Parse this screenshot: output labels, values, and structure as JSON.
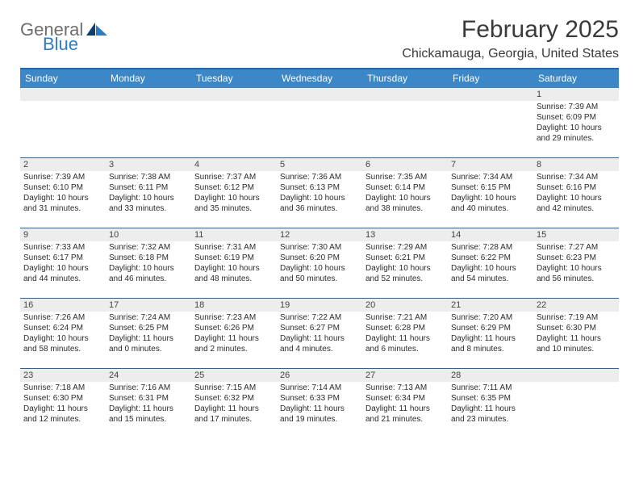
{
  "brand": {
    "name1": "General",
    "name2": "Blue"
  },
  "title": "February 2025",
  "location": "Chickamauga, Georgia, United States",
  "colors": {
    "header_band": "#3b87c8",
    "rule": "#2766a3",
    "daynum_bg": "#ededed",
    "brand_gray": "#6e6e6e",
    "brand_blue": "#2f7cc0",
    "sail_dark": "#0f3e6d",
    "sail_blue": "#2f7cc0"
  },
  "weekdays": [
    "Sunday",
    "Monday",
    "Tuesday",
    "Wednesday",
    "Thursday",
    "Friday",
    "Saturday"
  ],
  "calendar": {
    "first_weekday_index": 6,
    "days": [
      {
        "n": 1,
        "sunrise": "7:39 AM",
        "sunset": "6:09 PM",
        "dl_h": 10,
        "dl_m": 29
      },
      {
        "n": 2,
        "sunrise": "7:39 AM",
        "sunset": "6:10 PM",
        "dl_h": 10,
        "dl_m": 31
      },
      {
        "n": 3,
        "sunrise": "7:38 AM",
        "sunset": "6:11 PM",
        "dl_h": 10,
        "dl_m": 33
      },
      {
        "n": 4,
        "sunrise": "7:37 AM",
        "sunset": "6:12 PM",
        "dl_h": 10,
        "dl_m": 35
      },
      {
        "n": 5,
        "sunrise": "7:36 AM",
        "sunset": "6:13 PM",
        "dl_h": 10,
        "dl_m": 36
      },
      {
        "n": 6,
        "sunrise": "7:35 AM",
        "sunset": "6:14 PM",
        "dl_h": 10,
        "dl_m": 38
      },
      {
        "n": 7,
        "sunrise": "7:34 AM",
        "sunset": "6:15 PM",
        "dl_h": 10,
        "dl_m": 40
      },
      {
        "n": 8,
        "sunrise": "7:34 AM",
        "sunset": "6:16 PM",
        "dl_h": 10,
        "dl_m": 42
      },
      {
        "n": 9,
        "sunrise": "7:33 AM",
        "sunset": "6:17 PM",
        "dl_h": 10,
        "dl_m": 44
      },
      {
        "n": 10,
        "sunrise": "7:32 AM",
        "sunset": "6:18 PM",
        "dl_h": 10,
        "dl_m": 46
      },
      {
        "n": 11,
        "sunrise": "7:31 AM",
        "sunset": "6:19 PM",
        "dl_h": 10,
        "dl_m": 48
      },
      {
        "n": 12,
        "sunrise": "7:30 AM",
        "sunset": "6:20 PM",
        "dl_h": 10,
        "dl_m": 50
      },
      {
        "n": 13,
        "sunrise": "7:29 AM",
        "sunset": "6:21 PM",
        "dl_h": 10,
        "dl_m": 52
      },
      {
        "n": 14,
        "sunrise": "7:28 AM",
        "sunset": "6:22 PM",
        "dl_h": 10,
        "dl_m": 54
      },
      {
        "n": 15,
        "sunrise": "7:27 AM",
        "sunset": "6:23 PM",
        "dl_h": 10,
        "dl_m": 56
      },
      {
        "n": 16,
        "sunrise": "7:26 AM",
        "sunset": "6:24 PM",
        "dl_h": 10,
        "dl_m": 58
      },
      {
        "n": 17,
        "sunrise": "7:24 AM",
        "sunset": "6:25 PM",
        "dl_h": 11,
        "dl_m": 0
      },
      {
        "n": 18,
        "sunrise": "7:23 AM",
        "sunset": "6:26 PM",
        "dl_h": 11,
        "dl_m": 2
      },
      {
        "n": 19,
        "sunrise": "7:22 AM",
        "sunset": "6:27 PM",
        "dl_h": 11,
        "dl_m": 4
      },
      {
        "n": 20,
        "sunrise": "7:21 AM",
        "sunset": "6:28 PM",
        "dl_h": 11,
        "dl_m": 6
      },
      {
        "n": 21,
        "sunrise": "7:20 AM",
        "sunset": "6:29 PM",
        "dl_h": 11,
        "dl_m": 8
      },
      {
        "n": 22,
        "sunrise": "7:19 AM",
        "sunset": "6:30 PM",
        "dl_h": 11,
        "dl_m": 10
      },
      {
        "n": 23,
        "sunrise": "7:18 AM",
        "sunset": "6:30 PM",
        "dl_h": 11,
        "dl_m": 12
      },
      {
        "n": 24,
        "sunrise": "7:16 AM",
        "sunset": "6:31 PM",
        "dl_h": 11,
        "dl_m": 15
      },
      {
        "n": 25,
        "sunrise": "7:15 AM",
        "sunset": "6:32 PM",
        "dl_h": 11,
        "dl_m": 17
      },
      {
        "n": 26,
        "sunrise": "7:14 AM",
        "sunset": "6:33 PM",
        "dl_h": 11,
        "dl_m": 19
      },
      {
        "n": 27,
        "sunrise": "7:13 AM",
        "sunset": "6:34 PM",
        "dl_h": 11,
        "dl_m": 21
      },
      {
        "n": 28,
        "sunrise": "7:11 AM",
        "sunset": "6:35 PM",
        "dl_h": 11,
        "dl_m": 23
      }
    ]
  },
  "labels": {
    "sunrise": "Sunrise:",
    "sunset": "Sunset:",
    "daylight_prefix": "Daylight:",
    "hours_word": "hours",
    "and_word": "and",
    "minutes_word": "minutes."
  }
}
